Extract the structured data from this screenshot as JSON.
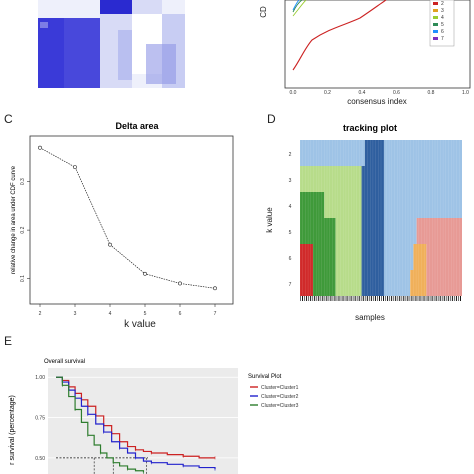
{
  "panels": {
    "A": {
      "letter": ""
    },
    "B": {
      "letter": "",
      "ylabel": "CD",
      "xlabel": "consensus index",
      "xticks": [
        "0.0",
        "0.2",
        "0.4",
        "0.6",
        "0.8",
        "1.0"
      ],
      "legend": [
        "2",
        "3",
        "4",
        "5",
        "6",
        "7"
      ],
      "legend_colors": [
        "#cc2222",
        "#e0a020",
        "#9acd32",
        "#2e8b57",
        "#1e90ff",
        "#7b2fbf"
      ]
    },
    "C": {
      "letter": "C"
    },
    "D": {
      "letter": "D",
      "title": "tracking plot",
      "ylabel": "k value",
      "xlabel": "samples",
      "k_rows": [
        "2",
        "3",
        "4",
        "5",
        "6",
        "7"
      ]
    },
    "E": {
      "letter": "E",
      "subtitle": "Overall survival",
      "legend_title": "Survival Plot",
      "ylabel": "r survival (percentage)",
      "yticks": [
        "1.00",
        "0.75",
        "0.50"
      ],
      "legend": [
        "Cluster=Cluster1",
        "Cluster=Cluster2",
        "Cluster=Cluster3"
      ],
      "legend_colors": [
        "#cc2222",
        "#2222cc",
        "#2e7d2e"
      ]
    }
  },
  "chart_data": [
    {
      "type": "line",
      "panel": "C",
      "title": "Delta area",
      "xlabel": "k value",
      "ylabel": "relative change in area under CDF curve",
      "x": [
        2,
        3,
        4,
        5,
        6,
        7
      ],
      "values": [
        0.37,
        0.33,
        0.17,
        0.11,
        0.09,
        0.08
      ],
      "xlim": [
        2,
        7
      ],
      "ylim": [
        0.06,
        0.39
      ],
      "yticks": [
        0.1,
        0.2,
        0.3
      ],
      "xticks": [
        "2",
        "3",
        "4",
        "5",
        "6",
        "7"
      ]
    },
    {
      "type": "line",
      "panel": "E",
      "title": "Survival Plot",
      "ylabel": "r survival (percentage)",
      "ylim": [
        0.4,
        1.02
      ],
      "yticks": [
        1.0,
        0.75,
        0.5
      ],
      "series": [
        {
          "name": "Cluster=Cluster1",
          "color": "#cc2222",
          "x": [
            0,
            0.04,
            0.08,
            0.12,
            0.16,
            0.2,
            0.25,
            0.3,
            0.35,
            0.4,
            0.45,
            0.5,
            0.55,
            0.6,
            0.7,
            0.8,
            0.9,
            1.0
          ],
          "y": [
            1.0,
            0.98,
            0.94,
            0.9,
            0.86,
            0.82,
            0.76,
            0.7,
            0.65,
            0.6,
            0.57,
            0.55,
            0.54,
            0.53,
            0.52,
            0.51,
            0.5,
            0.5
          ]
        },
        {
          "name": "Cluster=Cluster2",
          "color": "#2222cc",
          "x": [
            0,
            0.04,
            0.08,
            0.12,
            0.16,
            0.2,
            0.25,
            0.3,
            0.35,
            0.4,
            0.45,
            0.5,
            0.55,
            0.6,
            0.7,
            0.8,
            0.9,
            1.0
          ],
          "y": [
            1.0,
            0.97,
            0.92,
            0.87,
            0.82,
            0.77,
            0.71,
            0.66,
            0.6,
            0.56,
            0.53,
            0.5,
            0.48,
            0.47,
            0.46,
            0.45,
            0.44,
            0.43
          ]
        },
        {
          "name": "Cluster=Cluster3",
          "color": "#2e7d2e",
          "x": [
            0,
            0.04,
            0.08,
            0.12,
            0.16,
            0.2,
            0.24,
            0.28,
            0.32,
            0.36,
            0.4,
            0.45,
            0.5,
            0.55
          ],
          "y": [
            1.0,
            0.95,
            0.88,
            0.8,
            0.72,
            0.64,
            0.58,
            0.53,
            0.5,
            0.47,
            0.45,
            0.43,
            0.42,
            0.41
          ]
        }
      ]
    }
  ]
}
